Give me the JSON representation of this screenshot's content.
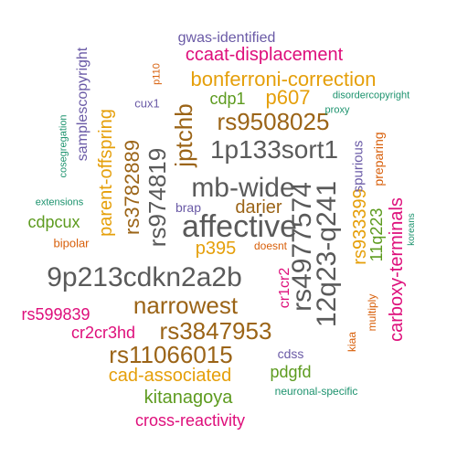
{
  "colors": {
    "dark": "#5a5a5a",
    "gold": "#e59f0a",
    "brown": "#9b6417",
    "green": "#5d9b1f",
    "magenta": "#de0f7b",
    "purple": "#6a5aa6",
    "teal": "#1d936e",
    "orange": "#d85f0a"
  },
  "words": [
    {
      "text": "affective",
      "color": "dark"
    },
    {
      "text": "mb-wide",
      "color": "dark"
    },
    {
      "text": "1p133sort1",
      "color": "dark"
    },
    {
      "text": "9p213cdkn2a2b",
      "color": "dark"
    },
    {
      "text": "rs4977574",
      "color": "dark"
    },
    {
      "text": "12q23-q241",
      "color": "dark"
    },
    {
      "text": "rs974819",
      "color": "dark"
    },
    {
      "text": "rs9508025",
      "color": "brown"
    },
    {
      "text": "narrowest",
      "color": "brown"
    },
    {
      "text": "rs3847953",
      "color": "brown"
    },
    {
      "text": "rs11066015",
      "color": "brown"
    },
    {
      "text": "jptchb",
      "color": "brown"
    },
    {
      "text": "rs3782889",
      "color": "brown"
    },
    {
      "text": "darier",
      "color": "brown"
    },
    {
      "text": "bonferroni-correction",
      "color": "gold"
    },
    {
      "text": "p607",
      "color": "gold"
    },
    {
      "text": "p395",
      "color": "gold"
    },
    {
      "text": "parent-offspring",
      "color": "gold"
    },
    {
      "text": "cad-associated",
      "color": "gold"
    },
    {
      "text": "rs933399",
      "color": "gold"
    },
    {
      "text": "11q223",
      "color": "green"
    },
    {
      "text": "cdp1",
      "color": "green"
    },
    {
      "text": "cdpcux",
      "color": "green"
    },
    {
      "text": "kitanagoya",
      "color": "green"
    },
    {
      "text": "pdgfd",
      "color": "green"
    },
    {
      "text": "ccaat-displacement",
      "color": "magenta"
    },
    {
      "text": "carboxy-terminals",
      "color": "magenta"
    },
    {
      "text": "rs599839",
      "color": "magenta"
    },
    {
      "text": "cr2cr3hd",
      "color": "magenta"
    },
    {
      "text": "cross-reactivity",
      "color": "magenta"
    },
    {
      "text": "cr1cr2",
      "color": "magenta"
    },
    {
      "text": "gwas-identified",
      "color": "purple"
    },
    {
      "text": "samplescopyright",
      "color": "purple"
    },
    {
      "text": "spurious",
      "color": "purple"
    },
    {
      "text": "cux1",
      "color": "purple"
    },
    {
      "text": "brap",
      "color": "purple"
    },
    {
      "text": "cdss",
      "color": "purple"
    },
    {
      "text": "disordercopyright",
      "color": "teal"
    },
    {
      "text": "proxy",
      "color": "teal"
    },
    {
      "text": "cosegregation",
      "color": "teal"
    },
    {
      "text": "extensions",
      "color": "teal"
    },
    {
      "text": "koreans",
      "color": "teal"
    },
    {
      "text": "neuronal-specific",
      "color": "teal"
    },
    {
      "text": "p110",
      "color": "orange"
    },
    {
      "text": "preparing",
      "color": "orange"
    },
    {
      "text": "bipolar",
      "color": "orange"
    },
    {
      "text": "doesnt",
      "color": "orange"
    },
    {
      "text": "multiply",
      "color": "orange"
    },
    {
      "text": "kiaa",
      "color": "orange"
    }
  ]
}
